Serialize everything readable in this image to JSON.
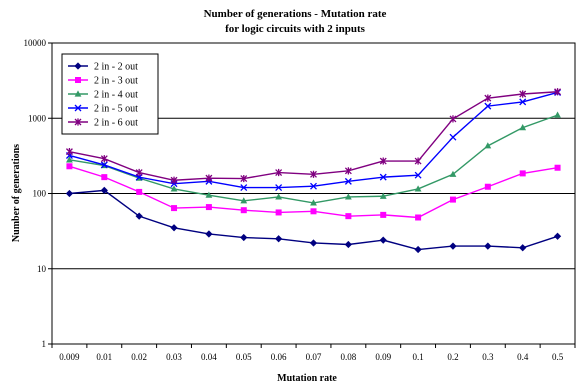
{
  "chart_data": {
    "type": "line",
    "title": "Number of generations - Mutation rate",
    "subtitle": "for logic circuits with 2 inputs",
    "xlabel": "Mutation rate",
    "ylabel": "Number of generations",
    "yscale": "log",
    "ylim": [
      1,
      10000
    ],
    "yticks": [
      "1",
      "10",
      "100",
      "1000",
      "10000"
    ],
    "grid": "horizontal",
    "legend_position": "top-left",
    "categories": [
      "0.009",
      "0.01",
      "0.02",
      "0.03",
      "0.04",
      "0.05",
      "0.06",
      "0.07",
      "0.08",
      "0.09",
      "0.1",
      "0.2",
      "0.3",
      "0.4",
      "0.5"
    ],
    "series": [
      {
        "name": "2 in - 2 out",
        "color": "#000080",
        "marker": "diamond",
        "values": [
          100,
          110,
          50,
          35,
          29,
          26,
          25,
          22,
          21,
          24,
          18,
          20,
          20,
          19,
          27
        ]
      },
      {
        "name": "2 in - 3 out",
        "color": "#ff00ff",
        "marker": "square",
        "values": [
          230,
          165,
          105,
          64,
          66,
          60,
          56,
          58,
          50,
          52,
          48,
          83,
          123,
          185,
          220
        ]
      },
      {
        "name": "2 in - 4 out",
        "color": "#339966",
        "marker": "triangle",
        "values": [
          280,
          235,
          160,
          115,
          95,
          80,
          90,
          75,
          90,
          92,
          115,
          180,
          430,
          750,
          1100
        ]
      },
      {
        "name": "2 in - 5 out",
        "color": "#0000ff",
        "marker": "x",
        "values": [
          320,
          240,
          165,
          135,
          145,
          120,
          120,
          125,
          145,
          165,
          175,
          560,
          1450,
          1650,
          2200
        ]
      },
      {
        "name": "2 in - 6 out",
        "color": "#800080",
        "marker": "star",
        "values": [
          360,
          290,
          190,
          150,
          160,
          158,
          190,
          180,
          200,
          270,
          270,
          980,
          1850,
          2100,
          2250
        ]
      }
    ]
  }
}
